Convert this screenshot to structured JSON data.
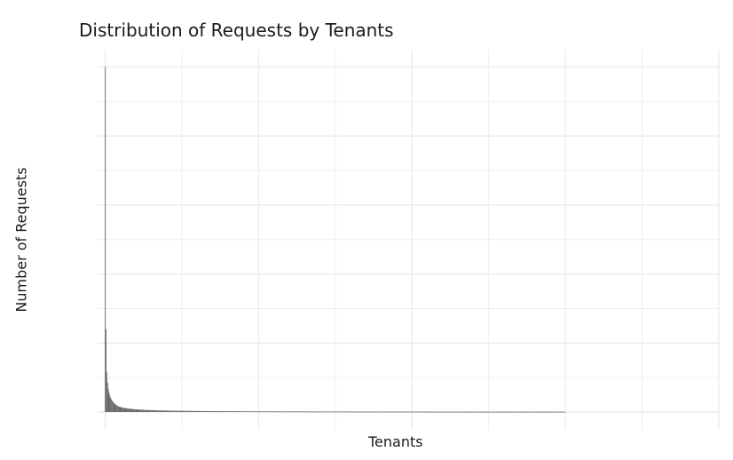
{
  "chart_data": {
    "type": "bar",
    "title": "Distribution of Requests by Tenants",
    "xlabel": "Tenants",
    "ylabel": "Number of Requests",
    "x_tick_labels": [],
    "y_tick_labels": [],
    "grid": true,
    "legend": "none",
    "bar_color": "#595959",
    "grid_color": "#ebebeb",
    "tenant_count": 600,
    "x_range": [
      -10,
      800
    ],
    "y_range": [
      0,
      1.05
    ],
    "values_relative": [
      1.0,
      0.24,
      0.115,
      0.085,
      0.068,
      0.056,
      0.048,
      0.042,
      0.037,
      0.033,
      0.03,
      0.027,
      0.025,
      0.023,
      0.021,
      0.0195,
      0.018,
      0.017,
      0.016,
      0.015
    ],
    "tail_decay": "power-law approaching zero after ~540 tenants"
  }
}
